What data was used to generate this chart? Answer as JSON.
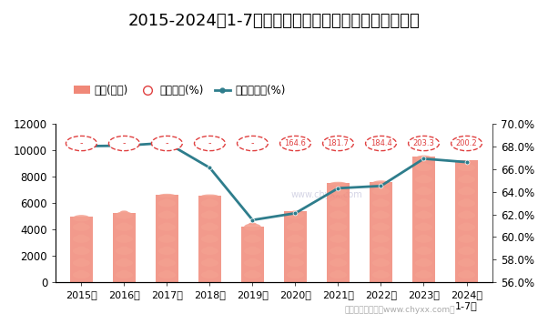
{
  "title": "2015-2024年1-7月宁夏回族自治区工业企业负债统计图",
  "years": [
    "2015年",
    "2016年",
    "2017年",
    "2018年",
    "2019年",
    "2020年",
    "2021年",
    "2022年",
    "2023年",
    "2024年\n1-7月"
  ],
  "liabilities": [
    5000,
    5250,
    6600,
    6550,
    4250,
    5350,
    7500,
    7600,
    9500,
    9200
  ],
  "equity_ratio_labels": [
    "-",
    "-",
    "-",
    "-",
    "-",
    "164.6",
    "181.7",
    "184.4",
    "203.3",
    "200.2"
  ],
  "asset_liability_rate": [
    68.0,
    68.05,
    68.3,
    66.1,
    61.5,
    62.1,
    64.3,
    64.5,
    66.9,
    66.6
  ],
  "left_ylim": [
    0,
    12000
  ],
  "right_ylim": [
    56.0,
    70.0
  ],
  "left_yticks": [
    0,
    2000,
    4000,
    6000,
    8000,
    10000,
    12000
  ],
  "right_yticks": [
    56.0,
    58.0,
    60.0,
    62.0,
    64.0,
    66.0,
    68.0,
    70.0
  ],
  "bar_color": "#F08878",
  "icon_color": "#F4A090",
  "icon_dark_color": "#E87060",
  "line_color": "#2E7D8C",
  "ellipse_edge_color": "#E04040",
  "legend_liabilities": "负债(亿元)",
  "legend_equity": "产权比率(%)",
  "legend_rate": "资产负债率(%)",
  "title_fontsize": 13,
  "tick_fontsize": 8.5,
  "credit_text": "制图：智研咨询（www.chyxx.com）",
  "watermark": "www.chyxx.com"
}
